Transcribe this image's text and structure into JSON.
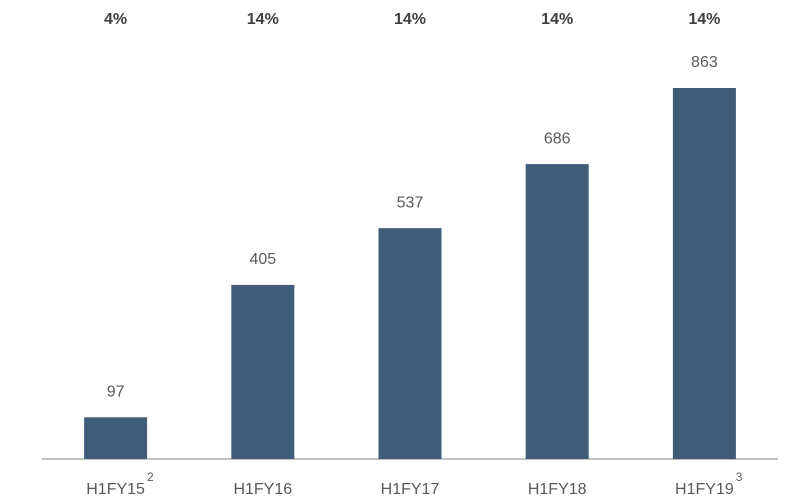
{
  "chart_data": {
    "type": "bar",
    "categories": [
      "H1FY15",
      "H1FY16",
      "H1FY17",
      "H1FY18",
      "H1FY19"
    ],
    "category_footnotes": [
      "2",
      null,
      null,
      null,
      "3"
    ],
    "top_labels": [
      "4%",
      "14%",
      "14%",
      "14%",
      "14%"
    ],
    "values": [
      97,
      405,
      537,
      686,
      863
    ],
    "color": "#3f5d78"
  }
}
